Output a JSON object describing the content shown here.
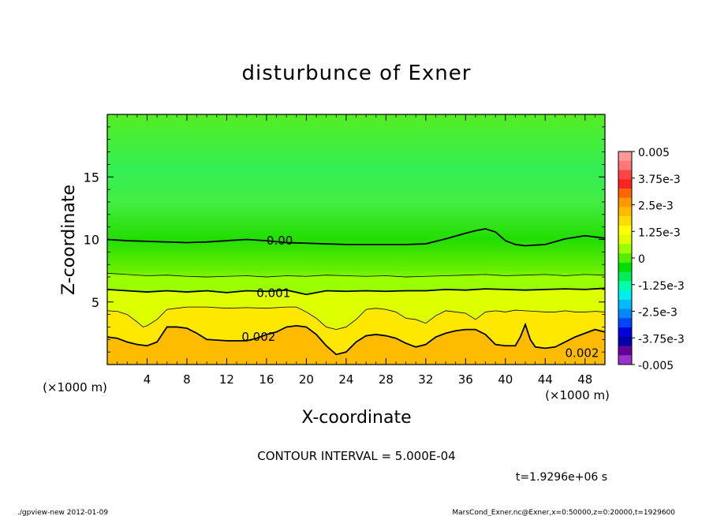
{
  "chart_data": {
    "type": "heatmap",
    "title": "disturbunce of Exner",
    "xlabel": "X-coordinate",
    "ylabel": "Z-coordinate",
    "x_unit": "(×1000 m)",
    "y_unit": "(×1000 m)",
    "xlim": [
      0,
      50
    ],
    "ylim": [
      0,
      20
    ],
    "x_ticks": [
      4,
      8,
      12,
      16,
      20,
      24,
      28,
      32,
      36,
      40,
      44,
      48
    ],
    "y_ticks": [
      5,
      10,
      15
    ],
    "colorbar": {
      "min": -0.005,
      "max": 0.005,
      "levels": [
        -0.005,
        -0.00375,
        -0.0025,
        -0.00125,
        0,
        0.00125,
        0.0025,
        0.00375,
        0.005
      ],
      "tick_labels": [
        "0.005",
        "3.75e-3",
        "2.5e-3",
        "1.25e-3",
        "0",
        "-1.25e-3",
        "-2.5e-3",
        "-3.75e-3",
        "-0.005"
      ],
      "colors_top_to_bottom": [
        "#ff9999",
        "#ff7777",
        "#ff4444",
        "#ff2222",
        "#ff6600",
        "#ff9900",
        "#ffbb00",
        "#ffdd00",
        "#ffff00",
        "#ddff00",
        "#99ff00",
        "#55ee00",
        "#00dd00",
        "#00ee55",
        "#00ffaa",
        "#00eeee",
        "#00bbff",
        "#0088ff",
        "#0044ff",
        "#0000dd",
        "#0000aa",
        "#660099",
        "#9933cc"
      ]
    },
    "contours": [
      {
        "label": "0.00",
        "value": 0.0,
        "x": [
          0,
          2,
          4,
          6,
          8,
          10,
          12,
          14,
          16,
          18,
          20,
          22,
          24,
          26,
          28,
          30,
          32,
          34,
          36,
          37,
          38,
          39,
          40,
          41,
          42,
          43,
          44,
          46,
          48,
          50
        ],
        "z": [
          10,
          9.9,
          9.85,
          9.8,
          9.75,
          9.8,
          9.9,
          10,
          9.9,
          9.75,
          9.7,
          9.65,
          9.6,
          9.6,
          9.6,
          9.6,
          9.65,
          10.05,
          10.5,
          10.7,
          10.85,
          10.6,
          9.9,
          9.6,
          9.5,
          9.55,
          9.6,
          10.05,
          10.3,
          10.1
        ]
      },
      {
        "value": 0.0005,
        "x": [
          0,
          2,
          4,
          6,
          8,
          10,
          12,
          14,
          16,
          18,
          20,
          22,
          24,
          26,
          28,
          30,
          32,
          34,
          36,
          38,
          40,
          42,
          44,
          46,
          48,
          50
        ],
        "z": [
          7.3,
          7.2,
          7.1,
          7.15,
          7.05,
          7.0,
          7.05,
          7.1,
          7.0,
          7.1,
          7.05,
          7.15,
          7.1,
          7.05,
          7.1,
          7.0,
          7.05,
          7.1,
          7.15,
          7.2,
          7.1,
          7.15,
          7.2,
          7.1,
          7.2,
          7.15
        ]
      },
      {
        "label": "0.001",
        "value": 0.001,
        "x": [
          0,
          2,
          4,
          6,
          8,
          10,
          12,
          14,
          16,
          18,
          20,
          22,
          24,
          26,
          28,
          30,
          32,
          34,
          36,
          38,
          40,
          42,
          44,
          46,
          48,
          50
        ],
        "z": [
          6.0,
          5.9,
          5.8,
          5.9,
          5.8,
          5.9,
          5.75,
          5.9,
          5.85,
          5.95,
          5.6,
          5.9,
          5.85,
          5.9,
          5.85,
          5.9,
          5.9,
          6.0,
          5.95,
          6.05,
          6.0,
          5.95,
          6.0,
          6.05,
          6.0,
          6.1
        ]
      },
      {
        "value": 0.0015,
        "x": [
          0,
          1,
          2,
          3,
          3.6,
          4,
          5,
          6,
          7,
          8,
          10,
          12,
          14,
          16,
          18,
          19,
          20,
          21,
          22,
          23,
          24,
          25,
          26,
          27,
          28,
          29,
          30,
          31,
          32,
          33,
          34,
          35,
          36,
          37,
          38,
          39,
          40,
          41,
          42,
          43,
          44,
          45,
          46,
          47,
          48,
          49,
          50
        ],
        "z": [
          4.3,
          4.25,
          4.0,
          3.4,
          3.0,
          3.1,
          3.6,
          4.4,
          4.5,
          4.6,
          4.6,
          4.5,
          4.55,
          4.5,
          4.6,
          4.6,
          4.2,
          3.7,
          3.0,
          2.8,
          3.0,
          3.6,
          4.4,
          4.5,
          4.4,
          4.2,
          3.7,
          3.6,
          3.3,
          3.9,
          4.3,
          4.2,
          4.1,
          3.6,
          4.2,
          4.3,
          4.2,
          4.35,
          4.3,
          4.25,
          4.2,
          4.2,
          4.3,
          4.2,
          4.2,
          4.25,
          4.2
        ]
      },
      {
        "label": "0.002",
        "value": 0.002,
        "x": [
          0,
          1,
          2,
          3,
          4,
          5,
          5.5,
          6,
          7,
          8,
          9,
          10,
          12,
          14,
          15,
          16,
          17,
          18,
          19,
          20,
          21,
          22,
          23,
          24,
          25,
          26,
          27,
          28,
          29,
          30,
          31,
          32,
          33,
          34,
          35,
          36,
          37,
          38,
          39,
          40,
          41,
          41.5,
          42,
          42.5,
          43,
          44,
          45,
          46,
          47,
          48,
          49,
          50
        ],
        "z": [
          2.2,
          2.1,
          1.8,
          1.6,
          1.5,
          1.8,
          2.4,
          3.0,
          3.0,
          2.9,
          2.5,
          2.0,
          1.9,
          1.9,
          2.1,
          2.4,
          2.6,
          3.0,
          3.1,
          3.0,
          2.4,
          1.5,
          0.8,
          1.0,
          1.8,
          2.3,
          2.4,
          2.3,
          2.1,
          1.7,
          1.4,
          1.6,
          2.2,
          2.5,
          2.7,
          2.8,
          2.8,
          2.4,
          1.6,
          1.5,
          1.5,
          2.2,
          3.2,
          2.0,
          1.4,
          1.3,
          1.4,
          1.8,
          2.2,
          2.5,
          2.8,
          2.6
        ]
      }
    ]
  },
  "footer": {
    "contour_interval": "CONTOUR INTERVAL = 5.000E-04",
    "time": "t=1.9296e+06 s",
    "program": "./gpview-new   2012-01-09",
    "source": "MarsCond_Exner.nc@Exner,x=0:50000,z=0:20000,t=1929600"
  }
}
